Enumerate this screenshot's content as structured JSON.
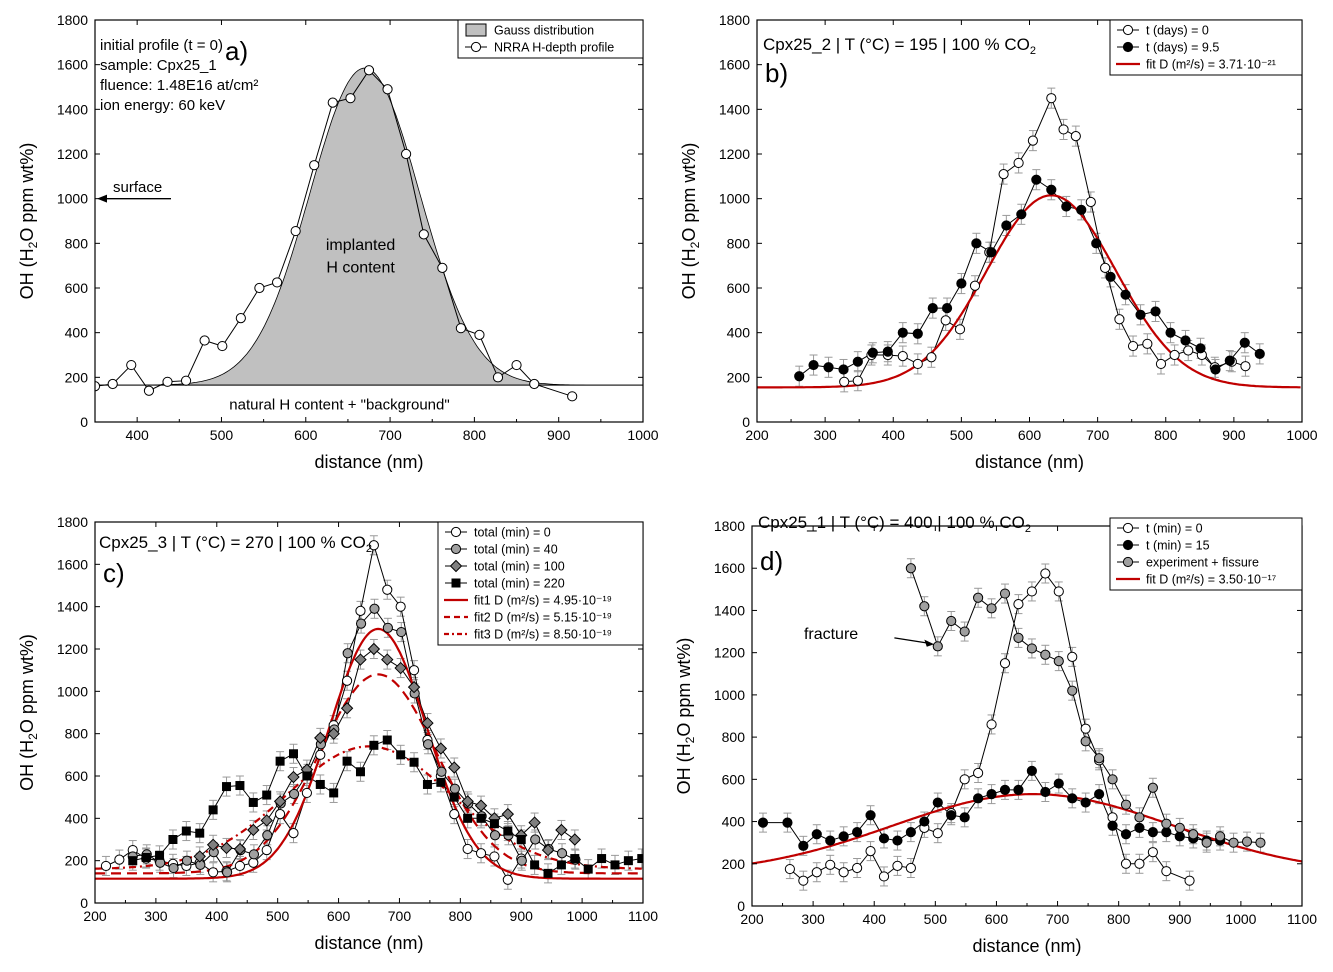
{
  "colors": {
    "axis": "#000000",
    "fit": "#c00000",
    "gauss_fill": "#c0c0c0",
    "grey_marker": "#a0a0a0",
    "dark_grey_marker": "#7f7f7f",
    "error_bar": "#9a9a9a"
  },
  "chart_data": [
    {
      "id": "a",
      "type": "line",
      "panel_label": "a)",
      "xlabel": "distance (nm)",
      "ylabel": "OH (H2O ppm wt%)",
      "xlim": [
        350,
        1000
      ],
      "ylim": [
        0,
        1800
      ],
      "xticks": [
        400,
        500,
        600,
        700,
        800,
        900,
        1000
      ],
      "yticks": [
        0,
        200,
        400,
        600,
        800,
        1000,
        1200,
        1400,
        1600,
        1800
      ],
      "info_lines": [
        "initial profile (t = 0)",
        "sample: Cpx25_1",
        "fluence: 1.48E16 at/cm²",
        "ion energy: 60 keV"
      ],
      "annotations": {
        "surface": "surface",
        "implanted_1": "implanted",
        "implanted_2": "H content",
        "natural": "natural H content + \"background\""
      },
      "legend": [
        "Gauss distribution",
        "NRRA H-depth profile"
      ],
      "gauss": {
        "center": 670,
        "amplitude": 1420,
        "sigma": 65,
        "baseline": 165
      },
      "series": [
        {
          "name": "NRRA H-depth profile",
          "marker": "open",
          "x": [
            350,
            371,
            393,
            414,
            436,
            458,
            480,
            501,
            523,
            545,
            566,
            588,
            610,
            632,
            653,
            675,
            697,
            719,
            740,
            762,
            784,
            806,
            828,
            850,
            871,
            916
          ],
          "y": [
            160,
            170,
            255,
            140,
            180,
            185,
            365,
            340,
            465,
            600,
            625,
            855,
            1150,
            1430,
            1450,
            1575,
            1490,
            1200,
            840,
            690,
            420,
            390,
            200,
            255,
            170,
            115
          ]
        }
      ]
    },
    {
      "id": "b",
      "type": "line",
      "panel_label": "b)",
      "title": "Cpx25_2 | T (°C) = 195 | 100 % CO₂",
      "xlabel": "distance (nm)",
      "ylabel": "OH (H2O ppm wt%)",
      "xlim": [
        200,
        1000
      ],
      "ylim": [
        0,
        1800
      ],
      "xticks": [
        200,
        300,
        400,
        500,
        600,
        700,
        800,
        900,
        1000
      ],
      "yticks": [
        0,
        200,
        400,
        600,
        800,
        1000,
        1200,
        1400,
        1600,
        1800
      ],
      "legend": [
        "t (days) = 0",
        "t (days) = 9.5",
        "fit D (m²/s) = 3.71·10⁻²¹"
      ],
      "series": [
        {
          "name": "t (days) = 0",
          "marker": "open",
          "x": [
            328,
            348,
            368,
            392,
            414,
            436,
            456,
            477,
            498,
            520,
            541,
            562,
            584,
            605,
            632,
            650,
            668,
            690,
            711,
            732,
            752,
            773,
            793,
            813,
            833,
            853,
            872,
            897,
            917
          ],
          "y": [
            180,
            185,
            300,
            300,
            295,
            260,
            290,
            455,
            415,
            610,
            760,
            1110,
            1160,
            1260,
            1450,
            1310,
            1280,
            985,
            690,
            460,
            340,
            350,
            260,
            300,
            320,
            300,
            245,
            270,
            250
          ]
        },
        {
          "name": "t (days) = 9.5",
          "marker": "filled",
          "x": [
            262,
            283,
            305,
            327,
            348,
            370,
            392,
            414,
            436,
            458,
            479,
            500,
            522,
            544,
            566,
            588,
            610,
            632,
            654,
            676,
            698,
            719,
            741,
            763,
            785,
            807,
            829,
            851,
            873,
            894,
            916,
            938
          ],
          "y": [
            205,
            255,
            245,
            235,
            270,
            310,
            315,
            400,
            395,
            510,
            510,
            620,
            800,
            760,
            880,
            930,
            1085,
            1040,
            965,
            950,
            800,
            650,
            570,
            480,
            495,
            400,
            365,
            330,
            235,
            275,
            355,
            305
          ]
        }
      ],
      "fits": [
        {
          "label": "fit D (m²/s) = 3.71·10⁻²¹",
          "center": 632,
          "amplitude": 860,
          "sigma": 95,
          "baseline": 155
        }
      ]
    },
    {
      "id": "c",
      "type": "line",
      "panel_label": "c)",
      "title": "Cpx25_3 | T (°C) = 270 | 100 % CO₂",
      "xlabel": "distance (nm)",
      "ylabel": "OH (H2O ppm wt%)",
      "xlim": [
        200,
        1100
      ],
      "ylim": [
        0,
        1800
      ],
      "xticks": [
        200,
        300,
        400,
        500,
        600,
        700,
        800,
        900,
        1000,
        1100
      ],
      "yticks": [
        0,
        200,
        400,
        600,
        800,
        1000,
        1200,
        1400,
        1600,
        1800
      ],
      "legend": [
        "total (min) = 0",
        "total (min) = 40",
        "total (min) = 100",
        "total (min) = 220",
        "fit1 D (m²/s) = 4.95·10⁻¹⁹",
        "fit2 D (m²/s) = 5.15·10⁻¹⁹",
        "fit3 D (m²/s) = 8.50·10⁻¹⁹"
      ],
      "series": [
        {
          "name": "total (min) = 0",
          "marker": "open",
          "x": [
            218,
            240,
            262,
            284,
            306,
            328,
            350,
            372,
            394,
            416,
            438,
            460,
            482,
            504,
            526,
            548,
            570,
            592,
            614,
            636,
            658,
            680,
            702,
            724,
            746,
            768,
            790,
            812,
            834,
            856,
            878,
            900
          ],
          "y": [
            175,
            205,
            250,
            210,
            200,
            185,
            175,
            190,
            145,
            150,
            175,
            190,
            250,
            420,
            330,
            520,
            700,
            840,
            1050,
            1380,
            1690,
            1480,
            1400,
            1100,
            770,
            600,
            420,
            255,
            235,
            220,
            110,
            210
          ]
        },
        {
          "name": "total (min) = 40",
          "marker": "grey",
          "x": [
            262,
            285,
            307,
            329,
            351,
            373,
            395,
            417,
            439,
            461,
            483,
            505,
            527,
            549,
            571,
            593,
            615,
            637,
            659,
            681,
            703,
            725,
            747,
            769,
            791,
            813,
            835,
            857,
            879,
            901,
            923,
            945,
            967,
            989
          ],
          "y": [
            220,
            230,
            190,
            165,
            200,
            180,
            240,
            145,
            250,
            230,
            320,
            470,
            515,
            610,
            750,
            820,
            1180,
            1320,
            1390,
            1300,
            1280,
            990,
            750,
            620,
            540,
            470,
            410,
            320,
            320,
            200,
            300,
            255,
            235,
            205
          ]
        },
        {
          "name": "total (min) = 100",
          "marker": "diamond",
          "x": [
            372,
            394,
            416,
            438,
            460,
            482,
            504,
            526,
            548,
            570,
            592,
            614,
            636,
            658,
            680,
            702,
            724,
            746,
            768,
            790,
            812,
            834,
            856,
            878,
            900,
            922,
            944,
            966,
            988
          ],
          "y": [
            220,
            275,
            260,
            255,
            345,
            390,
            480,
            595,
            630,
            780,
            800,
            920,
            1150,
            1200,
            1150,
            1110,
            1020,
            850,
            730,
            640,
            480,
            460,
            400,
            420,
            320,
            380,
            250,
            345,
            300
          ]
        },
        {
          "name": "total (min) = 220",
          "marker": "square",
          "x": [
            262,
            284,
            306,
            328,
            350,
            372,
            394,
            416,
            438,
            460,
            482,
            504,
            526,
            548,
            570,
            592,
            614,
            636,
            658,
            680,
            702,
            724,
            746,
            768,
            790,
            812,
            834,
            856,
            878,
            900,
            922,
            944,
            966,
            988,
            1010,
            1032,
            1054,
            1076,
            1098
          ],
          "y": [
            200,
            215,
            225,
            300,
            340,
            330,
            440,
            550,
            555,
            475,
            510,
            670,
            705,
            600,
            560,
            520,
            670,
            620,
            745,
            770,
            700,
            665,
            560,
            570,
            500,
            400,
            400,
            375,
            340,
            300,
            180,
            140,
            180,
            210,
            160,
            210,
            180,
            200,
            210
          ]
        }
      ],
      "fits": [
        {
          "label": "fit1 D (m²/s) = 4.95·10⁻¹⁹",
          "style": "solid",
          "center": 665,
          "amplitude": 1180,
          "sigma": 80,
          "baseline": 115
        },
        {
          "label": "fit2 D (m²/s) = 5.15·10⁻¹⁹",
          "style": "dashed",
          "center": 665,
          "amplitude": 940,
          "sigma": 96,
          "baseline": 140
        },
        {
          "label": "fit3 D (m²/s) = 8.50·10⁻¹⁹",
          "style": "dashdot",
          "center": 650,
          "amplitude": 580,
          "sigma": 135,
          "baseline": 160
        }
      ]
    },
    {
      "id": "d",
      "type": "line",
      "panel_label": "d)",
      "title": "Cpx25_1 | T (°C) = 400 | 100 % CO₂",
      "xlabel": "distance (nm)",
      "ylabel": "OH (H2O ppm wt%)",
      "xlim": [
        200,
        1100
      ],
      "ylim": [
        0,
        1800
      ],
      "xticks": [
        200,
        300,
        400,
        500,
        600,
        700,
        800,
        900,
        1000,
        1100
      ],
      "yticks": [
        0,
        200,
        400,
        600,
        800,
        1000,
        1200,
        1400,
        1600,
        1800
      ],
      "legend": [
        "t (min) = 0",
        "t (min) = 15",
        "experiment + fissure",
        "fit D (m²/s) = 3.50·10⁻¹⁷"
      ],
      "annotation": "fracture",
      "series": [
        {
          "name": "t (min) = 0",
          "marker": "open",
          "x": [
            262,
            284,
            306,
            328,
            350,
            372,
            394,
            416,
            438,
            460,
            482,
            504,
            526,
            548,
            570,
            592,
            614,
            636,
            658,
            680,
            702,
            724,
            746,
            768,
            790,
            812,
            834,
            856,
            878,
            916
          ],
          "y": [
            175,
            120,
            160,
            195,
            160,
            180,
            260,
            140,
            190,
            180,
            370,
            345,
            440,
            600,
            630,
            860,
            1150,
            1430,
            1490,
            1575,
            1490,
            1180,
            840,
            690,
            420,
            200,
            200,
            255,
            165,
            120
          ]
        },
        {
          "name": "t (min) = 15",
          "marker": "filled",
          "x": [
            218,
            258,
            284,
            306,
            328,
            350,
            372,
            394,
            416,
            438,
            460,
            482,
            504,
            526,
            548,
            570,
            592,
            614,
            636,
            658,
            680,
            702,
            724,
            746,
            768,
            790,
            812,
            834,
            856,
            878,
            900,
            922,
            944,
            966
          ],
          "y": [
            395,
            395,
            285,
            340,
            310,
            330,
            350,
            430,
            320,
            310,
            350,
            400,
            490,
            430,
            420,
            510,
            530,
            550,
            550,
            640,
            540,
            580,
            510,
            490,
            530,
            380,
            340,
            370,
            350,
            350,
            330,
            320,
            310,
            310
          ]
        },
        {
          "name": "experiment + fissure",
          "marker": "grey",
          "x": [
            460,
            482,
            504,
            526,
            548,
            570,
            592,
            614,
            636,
            658,
            680,
            702,
            724,
            746,
            768,
            790,
            812,
            834,
            856,
            878,
            900,
            922,
            944,
            966,
            988,
            1010,
            1032
          ],
          "y": [
            1600,
            1420,
            1230,
            1350,
            1300,
            1460,
            1410,
            1480,
            1270,
            1220,
            1190,
            1160,
            1020,
            780,
            700,
            600,
            480,
            420,
            560,
            390,
            370,
            340,
            300,
            330,
            300,
            305,
            300
          ]
        }
      ],
      "fits": [
        {
          "label": "fit D (m²/s) = 3.50·10⁻¹⁷",
          "style": "solid",
          "center": 660,
          "amplitude": 380,
          "sigma": 230,
          "baseline": 150
        }
      ]
    }
  ]
}
